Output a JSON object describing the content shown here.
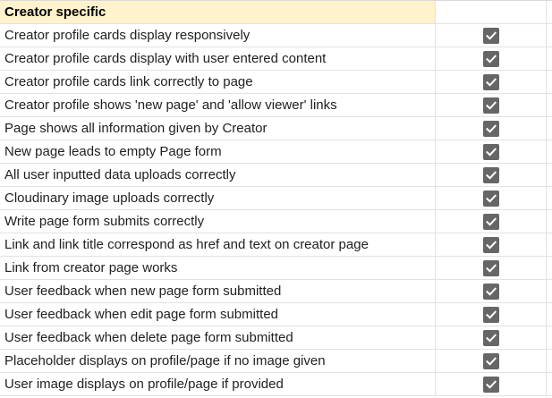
{
  "sheet": {
    "section_title": "Creator specific",
    "rows": [
      {
        "label": "Creator profile cards display responsively",
        "checked": true
      },
      {
        "label": "Creator profile cards display with user entered content",
        "checked": true
      },
      {
        "label": "Creator profile cards link correctly to page",
        "checked": true
      },
      {
        "label": "Creator profile shows 'new page' and 'allow viewer' links",
        "checked": true
      },
      {
        "label": "Page shows all information given by Creator",
        "checked": true
      },
      {
        "label": "New page leads to empty Page form",
        "checked": true
      },
      {
        "label": "All user inputted data uploads correctly",
        "checked": true
      },
      {
        "label": "Cloudinary image uploads correctly",
        "checked": true
      },
      {
        "label": "Write page form submits correctly",
        "checked": true
      },
      {
        "label": "Link and link title correspond as href and text on creator page",
        "checked": true
      },
      {
        "label": "Link from creator page works",
        "checked": true
      },
      {
        "label": "User feedback when new page form submitted",
        "checked": true
      },
      {
        "label": "User feedback when edit page form submitted",
        "checked": true
      },
      {
        "label": "User feedback when delete page form submitted",
        "checked": true
      },
      {
        "label": "Placeholder displays on profile/page if no image given",
        "checked": true
      },
      {
        "label": "User image displays on profile/page if provided",
        "checked": true
      }
    ]
  },
  "icons": {
    "checkbox": "checkbox-checked-icon"
  },
  "colors": {
    "header_bg": "#fff2cc",
    "checkbox": "#666666",
    "grid": "#e2e2e2"
  }
}
